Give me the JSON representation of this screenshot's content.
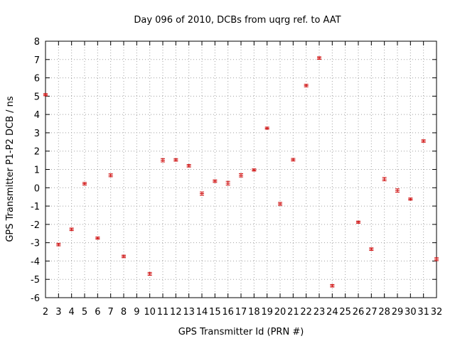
{
  "chart_data": {
    "type": "scatter",
    "title": "Day 096 of 2010, DCBs from uqrg ref. to AAT",
    "xlabel": "GPS Transmitter Id (PRN #)",
    "ylabel": "GPS Transmitter P1-P2 DCB / ns",
    "xlim": [
      2,
      32
    ],
    "ylim": [
      -6,
      8
    ],
    "grid": true,
    "xticks": [
      "2",
      "3",
      "4",
      "5",
      "6",
      "7",
      "8",
      "9",
      "10",
      "11",
      "12",
      "13",
      "14",
      "15",
      "16",
      "17",
      "18",
      "19",
      "20",
      "21",
      "22",
      "23",
      "24",
      "25",
      "26",
      "27",
      "28",
      "29",
      "30",
      "31",
      "32"
    ],
    "yticks": [
      "-6",
      "-5",
      "-4",
      "-3",
      "-2",
      "-1",
      "0",
      "1",
      "2",
      "3",
      "4",
      "5",
      "6",
      "7",
      "8"
    ],
    "series": [
      {
        "name": "DCB",
        "color": "#cc0000",
        "points": [
          {
            "prn": 2,
            "value": 5.08,
            "err": 0.06
          },
          {
            "prn": 3,
            "value": -3.1,
            "err": 0.07
          },
          {
            "prn": 4,
            "value": -2.27,
            "err": 0.07
          },
          {
            "prn": 5,
            "value": 0.22,
            "err": 0.07
          },
          {
            "prn": 6,
            "value": -2.75,
            "err": 0.06
          },
          {
            "prn": 7,
            "value": 0.68,
            "err": 0.08
          },
          {
            "prn": 8,
            "value": -3.75,
            "err": 0.07
          },
          {
            "prn": 10,
            "value": -4.7,
            "err": 0.08
          },
          {
            "prn": 11,
            "value": 1.5,
            "err": 0.09
          },
          {
            "prn": 12,
            "value": 1.52,
            "err": 0.07
          },
          {
            "prn": 13,
            "value": 1.2,
            "err": 0.07
          },
          {
            "prn": 14,
            "value": -0.32,
            "err": 0.09
          },
          {
            "prn": 15,
            "value": 0.36,
            "err": 0.07
          },
          {
            "prn": 16,
            "value": 0.25,
            "err": 0.1
          },
          {
            "prn": 17,
            "value": 0.68,
            "err": 0.09
          },
          {
            "prn": 18,
            "value": 0.97,
            "err": 0.06
          },
          {
            "prn": 19,
            "value": 3.25,
            "err": 0.06
          },
          {
            "prn": 20,
            "value": -0.88,
            "err": 0.08
          },
          {
            "prn": 21,
            "value": 1.53,
            "err": 0.07
          },
          {
            "prn": 22,
            "value": 5.58,
            "err": 0.07
          },
          {
            "prn": 23,
            "value": 7.08,
            "err": 0.07
          },
          {
            "prn": 24,
            "value": -5.35,
            "err": 0.07
          },
          {
            "prn": 26,
            "value": -1.88,
            "err": 0.06
          },
          {
            "prn": 27,
            "value": -3.35,
            "err": 0.07
          },
          {
            "prn": 28,
            "value": 0.47,
            "err": 0.09
          },
          {
            "prn": 29,
            "value": -0.15,
            "err": 0.09
          },
          {
            "prn": 30,
            "value": -0.62,
            "err": 0.06
          },
          {
            "prn": 31,
            "value": 2.55,
            "err": 0.07
          },
          {
            "prn": 32,
            "value": -3.9,
            "err": 0.08
          }
        ]
      }
    ]
  }
}
